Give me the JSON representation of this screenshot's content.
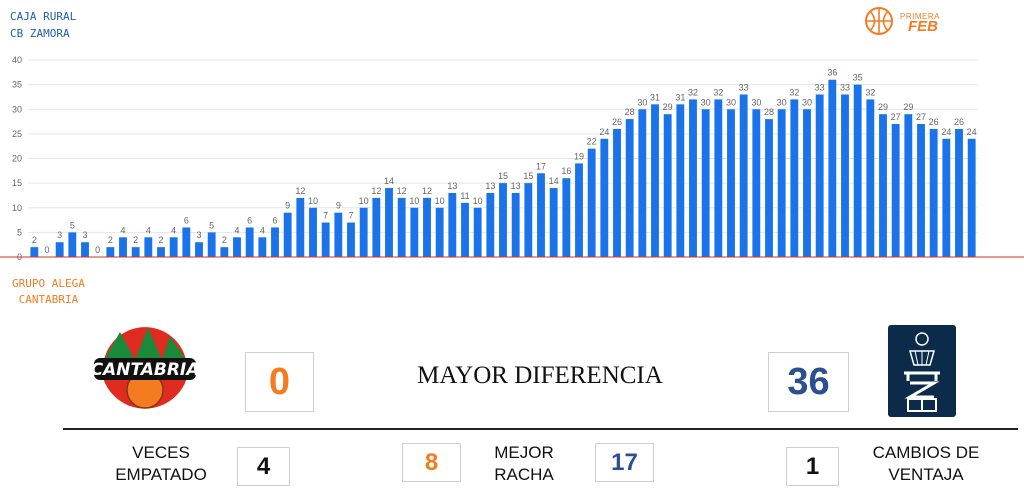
{
  "teams": {
    "top_line1": "CAJA RURAL",
    "top_line2": "CB ZAMORA",
    "bottom_line1": "GRUPO ALEGA",
    "bottom_line2": "CANTABRIA"
  },
  "logos": {
    "feb_small": "PRIMERA",
    "feb_big": "FEB",
    "cantabria": "CANTABRIA"
  },
  "chart_data": {
    "type": "bar",
    "ylim": [
      0,
      40
    ],
    "y_ticks": [
      "0",
      "5",
      "10",
      "15",
      "20",
      "25",
      "30",
      "35",
      "40"
    ],
    "grid": true,
    "values": [
      2,
      0,
      3,
      5,
      3,
      0,
      2,
      4,
      2,
      4,
      2,
      4,
      6,
      3,
      5,
      2,
      4,
      6,
      4,
      6,
      9,
      12,
      10,
      7,
      9,
      7,
      10,
      12,
      14,
      12,
      10,
      12,
      10,
      13,
      11,
      10,
      13,
      15,
      13,
      15,
      17,
      14,
      16,
      19,
      22,
      24,
      26,
      28,
      30,
      31,
      29,
      31,
      32,
      30,
      32,
      30,
      33,
      30,
      28,
      30,
      32,
      30,
      33,
      36,
      33,
      35,
      32,
      29,
      27,
      29,
      27,
      26,
      24,
      26,
      24
    ],
    "bar_color": "#1a73e8",
    "baseline_color": "#d93025"
  },
  "stats": {
    "left_max_diff": "0",
    "right_max_diff": "36",
    "title": "MAYOR DIFERENCIA",
    "ties_label_line1": "VECES",
    "ties_label_line2": "EMPATADO",
    "ties_value": "4",
    "run_left": "8",
    "run_label_line1": "MEJOR",
    "run_label_line2": "RACHA",
    "run_right": "17",
    "lead_changes_value": "1",
    "lead_changes_line1": "CAMBIOS DE",
    "lead_changes_line2": "VENTAJA"
  },
  "colors": {
    "orange": "#f47b20",
    "blue": "#2c4f92",
    "navy": "#0c2b4b"
  }
}
